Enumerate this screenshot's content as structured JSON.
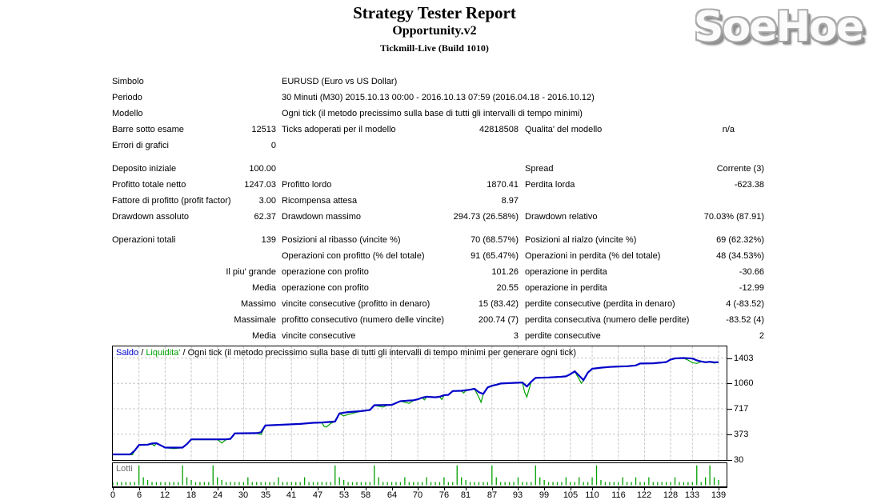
{
  "report": {
    "title": "Strategy Tester Report",
    "subtitle": "Opportunity.v2",
    "build": "Tickmill-Live (Build 1010)",
    "logo": "SoeHoe"
  },
  "table": {
    "sections": [
      {
        "rows": [
          {
            "l1": "Simbolo",
            "l2": "EURUSD (Euro vs US Dollar)"
          },
          {
            "l1": "Periodo",
            "l2": "30 Minuti (M30) 2015.10.13 00:00 - 2016.10.13 07:59 (2016.04.18 - 2016.10.12)"
          },
          {
            "l1": "Modello",
            "l2": "Ogni tick (il metodo precissimo sulla base di tutti gli intervalli di tempo minimi)"
          },
          {
            "l1": "Barre sotto esame",
            "v1": "12513",
            "l2": "Ticks adoperati per il modello",
            "v2": "42818508",
            "l3": "Qualita' del modello",
            "v3": "n/a",
            "na": true
          },
          {
            "l1": "Errori di grafici",
            "v1": "0"
          }
        ]
      },
      {
        "rows": [
          {
            "l1": "Deposito iniziale",
            "v1": "100.00",
            "l3": "Spread",
            "v3": "Corrente (3)"
          },
          {
            "l1": "Profitto totale netto",
            "v1": "1247.03",
            "l2": "Profitto lordo",
            "v2": "1870.41",
            "l3": "Perdita lorda",
            "v3": "-623.38"
          },
          {
            "l1": "Fattore di profitto (profit factor)",
            "v1": "3.00",
            "l2": "Ricompensa attesa",
            "v2": "8.97"
          },
          {
            "l1": "Drawdown assoluto",
            "v1": "62.37",
            "l2": "Drawdown massimo",
            "v2": "294.73 (26.58%)",
            "l3": "Drawdown relativo",
            "v3": "70.03% (87.91)"
          }
        ]
      },
      {
        "rows": [
          {
            "l1": "Operazioni totali",
            "v1": "139",
            "l2": "Posizioni al ribasso (vincite %)",
            "v2": "70 (68.57%)",
            "l3": "Posizioni al rialzo (vincite %)",
            "v3": "69 (62.32%)"
          },
          {
            "l2": "Operazioni con profitto (% del totale)",
            "v2": "91 (65.47%)",
            "l3": "Operazioni in perdita (% del totale)",
            "v3": "48 (34.53%)"
          },
          {
            "v1": "Il piu' grande",
            "l2": "operazione con profito",
            "v2": "101.26",
            "l3": "operazione in perdita",
            "v3": "-30.66"
          },
          {
            "v1": "Media",
            "l2": "operazione con profito",
            "v2": "20.55",
            "l3": "operazione in perdita",
            "v3": "-12.99"
          },
          {
            "v1": "Massimo",
            "l2": "vincite consecutive (profitto in denaro)",
            "v2": "15 (83.42)",
            "l3": "perdite consecutive (perdita in denaro)",
            "v3": "4 (-83.52)"
          },
          {
            "v1": "Massimale",
            "l2": "profitto consecutivo (numero delle vincite)",
            "v2": "200.74 (7)",
            "l3": "perdita consecutiva (numero delle perdite)",
            "v3": "-83.52 (4)"
          },
          {
            "v1": "Media",
            "l2": "vincite consecutive",
            "v2": "3",
            "l3": "perdite consecutive",
            "v3": "2"
          }
        ]
      }
    ]
  },
  "chart_data": {
    "type": "line",
    "legend": {
      "saldo": "Saldo",
      "liquidita": "Liquidita'",
      "sep": " / ",
      "desc": "Ogni tick (il metodo precissimo sulla base di tutti gli intervalli di tempo minimi per generare ogni tick)"
    },
    "colors": {
      "balance": "#0000c8",
      "equity": "#00a000",
      "grid": "#c8c8c8",
      "frame": "#000000"
    },
    "x_ticks": [
      0,
      6,
      12,
      18,
      24,
      30,
      35,
      41,
      47,
      53,
      58,
      64,
      70,
      76,
      81,
      87,
      93,
      99,
      105,
      110,
      116,
      122,
      128,
      133,
      139
    ],
    "y_ticks": [
      30,
      373,
      717,
      1060,
      1403
    ],
    "xlim": [
      0,
      141
    ],
    "ylim": [
      30,
      1403
    ],
    "series": [
      {
        "name": "Saldo",
        "color": "#0000c8",
        "points": [
          [
            0,
            100
          ],
          [
            4,
            100
          ],
          [
            5,
            150
          ],
          [
            6,
            228
          ],
          [
            8,
            232
          ],
          [
            9,
            248
          ],
          [
            10,
            252
          ],
          [
            11,
            222
          ],
          [
            12,
            192
          ],
          [
            16,
            192
          ],
          [
            17,
            240
          ],
          [
            18,
            303
          ],
          [
            26,
            303
          ],
          [
            27,
            310
          ],
          [
            28,
            385
          ],
          [
            33,
            388
          ],
          [
            34,
            400
          ],
          [
            35,
            492
          ],
          [
            40,
            505
          ],
          [
            43,
            512
          ],
          [
            46,
            527
          ],
          [
            48,
            532
          ],
          [
            51,
            545
          ],
          [
            52,
            655
          ],
          [
            54,
            672
          ],
          [
            57,
            685
          ],
          [
            59,
            700
          ],
          [
            60,
            765
          ],
          [
            64,
            770
          ],
          [
            66,
            820
          ],
          [
            69,
            832
          ],
          [
            70,
            845
          ],
          [
            71,
            868
          ],
          [
            72,
            880
          ],
          [
            74,
            872
          ],
          [
            75,
            880
          ],
          [
            76,
            900
          ],
          [
            77,
            905
          ],
          [
            78,
            957
          ],
          [
            80,
            960
          ],
          [
            82,
            975
          ],
          [
            83,
            988
          ],
          [
            84,
            940
          ],
          [
            85,
            918
          ],
          [
            86,
            1005
          ],
          [
            87,
            1028
          ],
          [
            88,
            1042
          ],
          [
            89,
            1058
          ],
          [
            92,
            1067
          ],
          [
            94,
            1072
          ],
          [
            95,
            1018
          ],
          [
            96,
            1082
          ],
          [
            97,
            1135
          ],
          [
            100,
            1140
          ],
          [
            103,
            1150
          ],
          [
            104,
            1155
          ],
          [
            105,
            1185
          ],
          [
            106,
            1222
          ],
          [
            107,
            1165
          ],
          [
            108,
            1105
          ],
          [
            109,
            1205
          ],
          [
            110,
            1258
          ],
          [
            112,
            1272
          ],
          [
            114,
            1282
          ],
          [
            116,
            1288
          ],
          [
            118,
            1292
          ],
          [
            120,
            1302
          ],
          [
            121,
            1328
          ],
          [
            124,
            1332
          ],
          [
            126,
            1342
          ],
          [
            127,
            1348
          ],
          [
            128,
            1382
          ],
          [
            129,
            1398
          ],
          [
            131,
            1403
          ],
          [
            132,
            1400
          ],
          [
            133,
            1396
          ],
          [
            134,
            1372
          ],
          [
            135,
            1356
          ],
          [
            136,
            1346
          ],
          [
            137,
            1352
          ],
          [
            138,
            1344
          ],
          [
            139,
            1347
          ]
        ]
      },
      {
        "name": "Liquidita'",
        "color": "#00a000",
        "points": [
          [
            0,
            100
          ],
          [
            4,
            100
          ],
          [
            4.5,
            95
          ],
          [
            5,
            148
          ],
          [
            6,
            225
          ],
          [
            8,
            230
          ],
          [
            9,
            240
          ],
          [
            9.5,
            215
          ],
          [
            10,
            248
          ],
          [
            11,
            220
          ],
          [
            12,
            190
          ],
          [
            14,
            178
          ],
          [
            16,
            190
          ],
          [
            17,
            238
          ],
          [
            18,
            300
          ],
          [
            24,
            300
          ],
          [
            25,
            255
          ],
          [
            26,
            300
          ],
          [
            27,
            308
          ],
          [
            28,
            383
          ],
          [
            33,
            386
          ],
          [
            34,
            368
          ],
          [
            35,
            490
          ],
          [
            40,
            503
          ],
          [
            43,
            510
          ],
          [
            46,
            525
          ],
          [
            48,
            530
          ],
          [
            48.5,
            478
          ],
          [
            49,
            470
          ],
          [
            50,
            520
          ],
          [
            51,
            543
          ],
          [
            52,
            652
          ],
          [
            53,
            620
          ],
          [
            54,
            640
          ],
          [
            55,
            655
          ],
          [
            57,
            683
          ],
          [
            59,
            698
          ],
          [
            60,
            763
          ],
          [
            62,
            740
          ],
          [
            63,
            765
          ],
          [
            64,
            768
          ],
          [
            66,
            818
          ],
          [
            68,
            790
          ],
          [
            69,
            830
          ],
          [
            70,
            843
          ],
          [
            71,
            866
          ],
          [
            71.5,
            838
          ],
          [
            72,
            878
          ],
          [
            74,
            870
          ],
          [
            75,
            877
          ],
          [
            75.5,
            842
          ],
          [
            76,
            897
          ],
          [
            77,
            903
          ],
          [
            78,
            955
          ],
          [
            80,
            958
          ],
          [
            80.5,
            930
          ],
          [
            81,
            960
          ],
          [
            82,
            973
          ],
          [
            83,
            985
          ],
          [
            84,
            870
          ],
          [
            84.5,
            805
          ],
          [
            85,
            915
          ],
          [
            86,
            1002
          ],
          [
            87,
            1025
          ],
          [
            88,
            1040
          ],
          [
            89,
            1055
          ],
          [
            92,
            1065
          ],
          [
            94,
            1070
          ],
          [
            94.5,
            940
          ],
          [
            95,
            875
          ],
          [
            96,
            1080
          ],
          [
            97,
            1132
          ],
          [
            100,
            1138
          ],
          [
            103,
            1148
          ],
          [
            104,
            1152
          ],
          [
            105,
            1182
          ],
          [
            106,
            1220
          ],
          [
            107,
            1120
          ],
          [
            107.5,
            1062
          ],
          [
            108,
            1102
          ],
          [
            109,
            1202
          ],
          [
            110,
            1255
          ],
          [
            112,
            1270
          ],
          [
            114,
            1280
          ],
          [
            116,
            1285
          ],
          [
            118,
            1290
          ],
          [
            120,
            1300
          ],
          [
            121,
            1325
          ],
          [
            124,
            1330
          ],
          [
            126,
            1340
          ],
          [
            127,
            1345
          ],
          [
            128,
            1380
          ],
          [
            129,
            1395
          ],
          [
            130,
            1400
          ],
          [
            131,
            1400
          ],
          [
            132,
            1375
          ],
          [
            133,
            1340
          ],
          [
            134,
            1330
          ],
          [
            135,
            1352
          ],
          [
            136,
            1342
          ],
          [
            137,
            1348
          ],
          [
            138,
            1335
          ],
          [
            139,
            1345
          ]
        ]
      }
    ],
    "lotti": {
      "label": "Lotti",
      "color": "#00a000",
      "values": [
        0.15,
        0.15,
        0.15,
        0.15,
        0.15,
        0.15,
        0.95,
        0.38,
        0.25,
        0.15,
        0.15,
        0.15,
        0.15,
        0.15,
        0.15,
        0.15,
        0.95,
        0.38,
        0.25,
        0.15,
        0.15,
        0.15,
        0.15,
        0.95,
        0.38,
        0.25,
        0.15,
        0.15,
        0.15,
        0.15,
        0.15,
        0.38,
        0.15,
        0.15,
        0.15,
        0.15,
        0.15,
        0.15,
        0.38,
        0.15,
        0.15,
        0.15,
        0.15,
        0.15,
        0.38,
        0.15,
        0.15,
        0.15,
        0.15,
        0.15,
        0.15,
        0.95,
        0.38,
        0.25,
        0.15,
        0.15,
        0.15,
        0.15,
        0.15,
        0.15,
        0.95,
        0.38,
        0.15,
        0.15,
        0.15,
        0.15,
        0.15,
        0.38,
        0.15,
        0.15,
        0.15,
        0.15,
        0.38,
        0.15,
        0.15,
        0.15,
        0.38,
        0.15,
        0.15,
        0.95,
        0.38,
        0.25,
        0.15,
        0.15,
        0.15,
        0.15,
        0.15,
        0.95,
        0.38,
        0.15,
        0.15,
        0.15,
        0.15,
        0.38,
        0.15,
        0.15,
        0.15,
        0.95,
        0.38,
        0.25,
        0.15,
        0.15,
        0.15,
        0.15,
        0.38,
        0.15,
        0.15,
        0.38,
        0.15,
        0.15,
        0.38,
        0.95,
        0.25,
        0.15,
        0.15,
        0.15,
        0.15,
        0.38,
        0.15,
        0.15,
        0.38,
        0.15,
        0.15,
        0.38,
        0.15,
        0.15,
        0.15,
        0.15,
        0.15,
        0.38,
        0.15,
        0.15,
        0.15,
        0.15,
        0.95,
        0.15,
        0.38,
        0.95,
        0.38,
        0.25
      ]
    }
  }
}
